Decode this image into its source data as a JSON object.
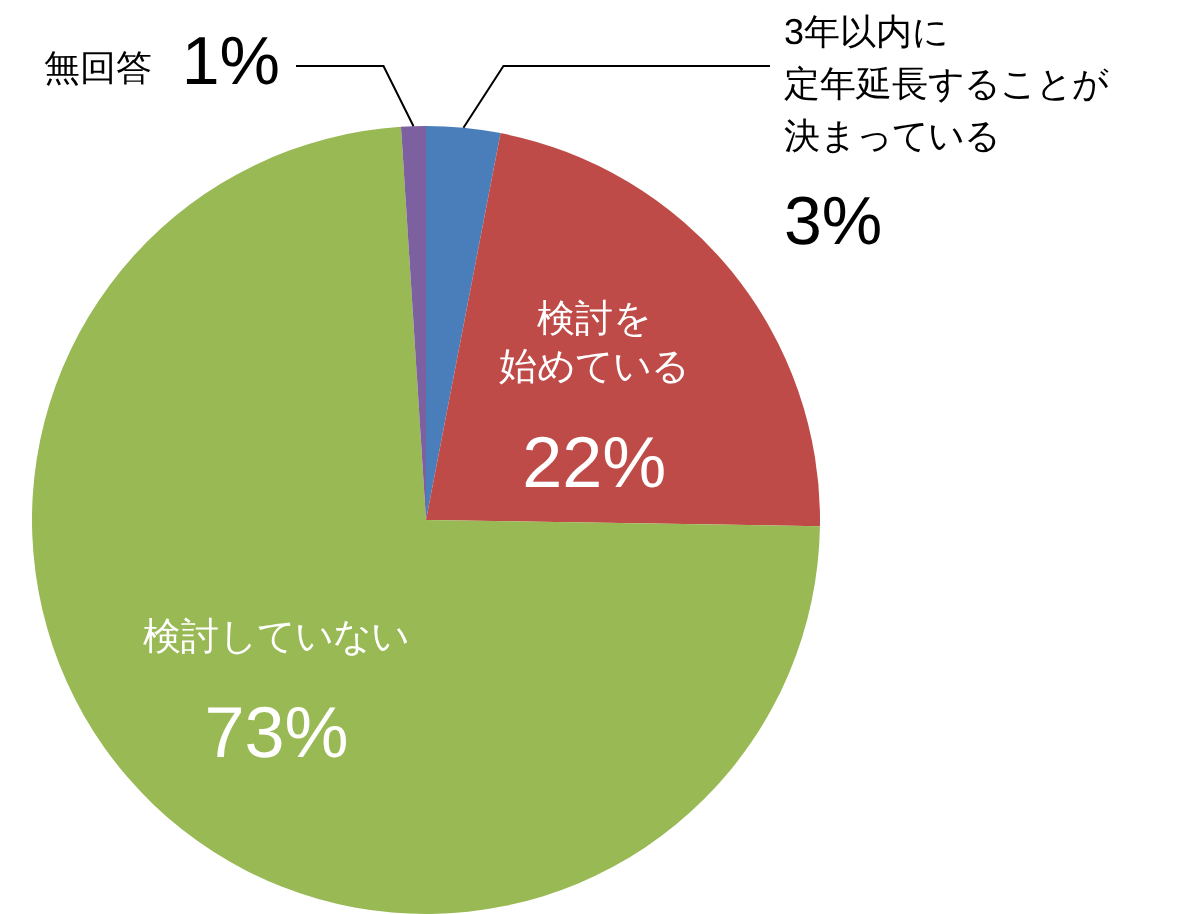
{
  "chart_data": {
    "type": "pie",
    "categories": [
      "3年以内に定年延長することが決まっている",
      "検討を始めている",
      "検討していない",
      "無回答"
    ],
    "values": [
      3,
      22,
      73,
      1
    ],
    "colors": [
      "#4a7ebb",
      "#be4b48",
      "#98b954",
      "#7d60a0"
    ],
    "value_labels": [
      "3%",
      "22%",
      "73%",
      "1%"
    ]
  }
}
